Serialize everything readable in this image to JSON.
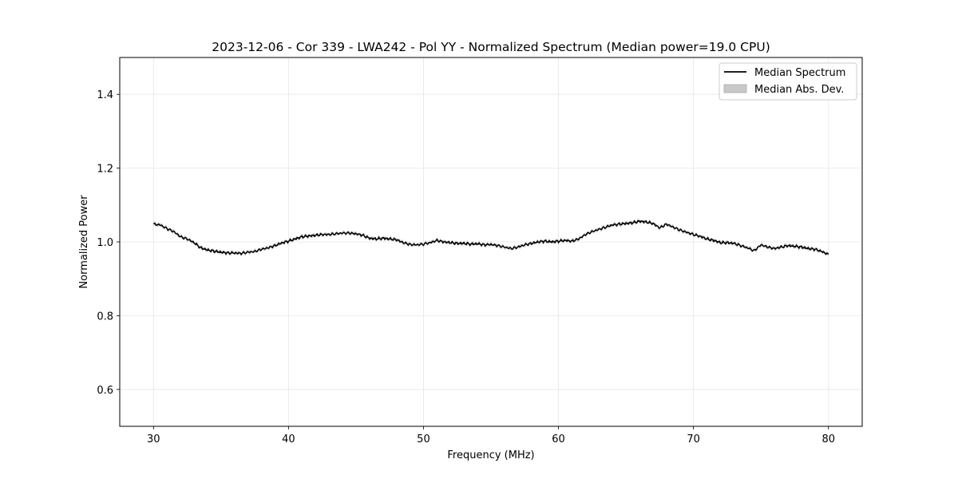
{
  "chart_data": {
    "type": "line",
    "title": "2023-12-06 - Cor 339 - LWA242 - Pol YY - Normalized Spectrum (Median power=19.0 CPU)",
    "xlabel": "Frequency (MHz)",
    "ylabel": "Normalized Power",
    "xlim": [
      27.5,
      82.5
    ],
    "ylim": [
      0.5,
      1.5
    ],
    "xticks": [
      30,
      40,
      50,
      60,
      70,
      80
    ],
    "yticks": [
      0.6,
      0.8,
      1.0,
      1.2,
      1.4
    ],
    "xtick_labels": [
      "30",
      "40",
      "50",
      "60",
      "70",
      "80"
    ],
    "ytick_labels": [
      "0.6",
      "0.8",
      "1.0",
      "1.2",
      "1.4"
    ],
    "grid": true,
    "legend_position": "top-right",
    "legend": [
      {
        "label": "Median Spectrum",
        "kind": "line",
        "color": "#000000"
      },
      {
        "label": "Median Abs. Dev.",
        "kind": "band",
        "color": "#c8c8c8"
      }
    ],
    "series": [
      {
        "name": "Median Spectrum",
        "color": "#000000",
        "band_color": "#bdbdbd",
        "band_halfwidth": 0.004,
        "x": [
          30,
          30.5,
          31,
          31.5,
          32,
          32.5,
          33,
          33.5,
          34,
          34.5,
          35,
          35.5,
          36,
          36.5,
          37,
          37.5,
          38,
          38.5,
          39,
          39.5,
          40,
          40.5,
          41,
          41.5,
          42,
          42.5,
          43,
          43.5,
          44,
          44.5,
          45,
          45.5,
          46,
          46.5,
          47,
          47.5,
          48,
          48.5,
          49,
          49.5,
          50,
          50.5,
          51,
          51.5,
          52,
          52.5,
          53,
          53.5,
          54,
          54.5,
          55,
          55.5,
          56,
          56.5,
          57,
          57.5,
          58,
          58.5,
          59,
          59.5,
          60,
          60.5,
          61,
          61.5,
          62,
          62.5,
          63,
          63.5,
          64,
          64.5,
          65,
          65.5,
          66,
          66.5,
          67,
          67.5,
          68,
          68.5,
          69,
          69.5,
          70,
          70.5,
          71,
          71.5,
          72,
          72.5,
          73,
          73.5,
          74,
          74.5,
          75,
          75.5,
          76,
          76.5,
          77,
          77.5,
          78,
          78.5,
          79,
          79.5,
          80
        ],
        "values": [
          1.048,
          1.046,
          1.036,
          1.028,
          1.014,
          1.008,
          0.998,
          0.984,
          0.978,
          0.975,
          0.972,
          0.97,
          0.97,
          0.969,
          0.972,
          0.974,
          0.98,
          0.984,
          0.99,
          0.997,
          1.002,
          1.008,
          1.014,
          1.016,
          1.018,
          1.02,
          1.02,
          1.022,
          1.024,
          1.024,
          1.022,
          1.018,
          1.01,
          1.008,
          1.01,
          1.008,
          1.006,
          0.998,
          0.993,
          0.992,
          0.994,
          0.998,
          1.004,
          1.0,
          0.998,
          0.996,
          0.996,
          0.994,
          0.995,
          0.992,
          0.993,
          0.99,
          0.986,
          0.982,
          0.986,
          0.992,
          0.996,
          1.0,
          1.002,
          1.0,
          1.002,
          1.004,
          1.002,
          1.008,
          1.02,
          1.028,
          1.034,
          1.04,
          1.046,
          1.048,
          1.05,
          1.052,
          1.056,
          1.054,
          1.05,
          1.038,
          1.048,
          1.04,
          1.032,
          1.026,
          1.02,
          1.015,
          1.008,
          1.004,
          0.998,
          0.998,
          0.996,
          0.99,
          0.984,
          0.976,
          0.992,
          0.986,
          0.982,
          0.986,
          0.99,
          0.988,
          0.986,
          0.982,
          0.98,
          0.974,
          0.966
        ]
      }
    ]
  }
}
